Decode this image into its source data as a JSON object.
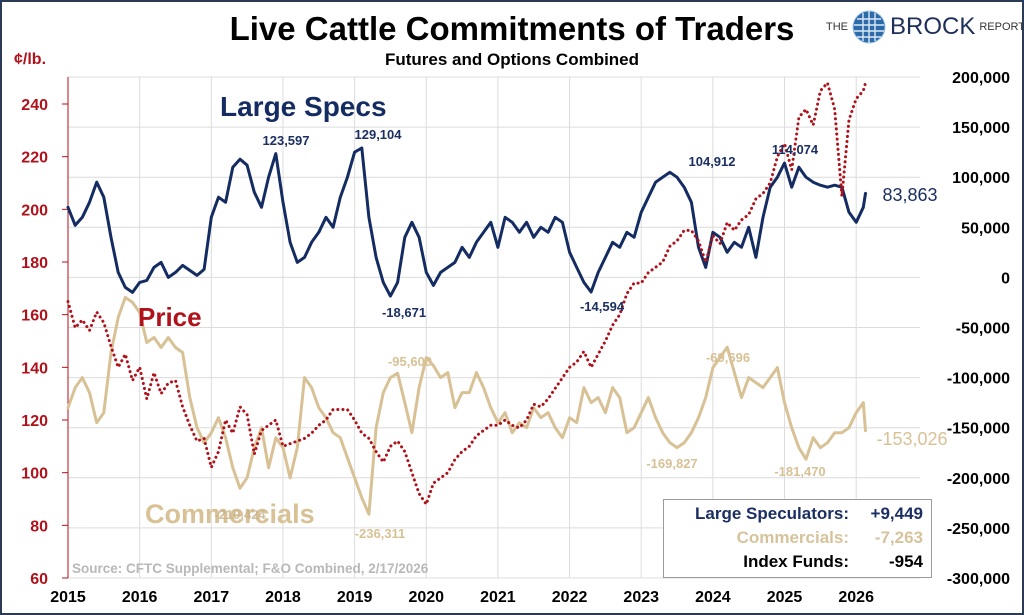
{
  "header": {
    "title": "Live Cattle Commitments of Traders",
    "subtitle": "Futures and Options Combined",
    "logo": {
      "the": "THE",
      "brand": "BROCK",
      "suffix": "REPORT"
    }
  },
  "source_note": "Source: CFTC Supplemental; F&O Combined, 2/17/2026",
  "summary": {
    "rows": [
      {
        "label": "Large Speculators:",
        "value": "+9,449",
        "color": "#1b2f63"
      },
      {
        "label": "Commercials:",
        "value": "-7,263",
        "color": "#d6c39b"
      },
      {
        "label": "Index Funds:",
        "value": "-954",
        "color": "#000000"
      }
    ]
  },
  "colors": {
    "large_specs": "#142c61",
    "commercials": "#d8c195",
    "price": "#b0121b",
    "grid": "#dcdcdc",
    "left_axis": "#b0121b"
  },
  "chart_data": {
    "type": "line",
    "title": "Live Cattle Commitments of Traders",
    "subtitle": "Futures and Options Combined",
    "xlabel": "",
    "x_ticks": [
      "2015",
      "2016",
      "2017",
      "2018",
      "2019",
      "2020",
      "2021",
      "2022",
      "2023",
      "2024",
      "2025",
      "2026"
    ],
    "xlim": [
      2015,
      2027.1
    ],
    "left_axis": {
      "label": "¢/lb.",
      "ylim": [
        60,
        240
      ],
      "ticks": [
        "60",
        "80",
        "100",
        "120",
        "140",
        "160",
        "180",
        "200",
        "220",
        "240"
      ]
    },
    "right_axis": {
      "label": "",
      "ylim": [
        -300000,
        200000
      ],
      "ticks": [
        "200,000",
        "150,000",
        "100,000",
        "50,000",
        "0",
        "-50,000",
        "-100,000",
        "-150,000",
        "-200,000",
        "-250,000",
        "-300,000"
      ]
    },
    "grid": true,
    "series_labels": {
      "large_specs": "Large Specs",
      "price": "Price",
      "commercials": "Commercials"
    },
    "series": [
      {
        "name": "Large Specs",
        "axis": "right",
        "style": "solid",
        "x": [
          2015.0,
          2015.1,
          2015.2,
          2015.3,
          2015.4,
          2015.5,
          2015.6,
          2015.7,
          2015.8,
          2015.9,
          2016.0,
          2016.1,
          2016.2,
          2016.3,
          2016.4,
          2016.5,
          2016.6,
          2016.7,
          2016.8,
          2016.9,
          2017.0,
          2017.1,
          2017.2,
          2017.3,
          2017.4,
          2017.5,
          2017.6,
          2017.7,
          2017.8,
          2017.9,
          2018.0,
          2018.1,
          2018.2,
          2018.3,
          2018.4,
          2018.5,
          2018.6,
          2018.7,
          2018.8,
          2018.9,
          2019.0,
          2019.1,
          2019.2,
          2019.3,
          2019.4,
          2019.5,
          2019.6,
          2019.7,
          2019.8,
          2019.9,
          2020.0,
          2020.1,
          2020.2,
          2020.3,
          2020.4,
          2020.5,
          2020.6,
          2020.7,
          2020.8,
          2020.9,
          2021.0,
          2021.1,
          2021.2,
          2021.3,
          2021.4,
          2021.5,
          2021.6,
          2021.7,
          2021.8,
          2021.9,
          2022.0,
          2022.1,
          2022.2,
          2022.3,
          2022.4,
          2022.5,
          2022.6,
          2022.7,
          2022.8,
          2022.9,
          2023.0,
          2023.1,
          2023.2,
          2023.3,
          2023.4,
          2023.5,
          2023.6,
          2023.7,
          2023.8,
          2023.9,
          2024.0,
          2024.1,
          2024.2,
          2024.3,
          2024.4,
          2024.5,
          2024.6,
          2024.7,
          2024.8,
          2024.9,
          2025.0,
          2025.1,
          2025.2,
          2025.3,
          2025.4,
          2025.5,
          2025.6,
          2025.7,
          2025.8,
          2025.9,
          2026.0,
          2026.1,
          2026.13
        ],
        "values": [
          70000,
          52000,
          60000,
          75000,
          95000,
          80000,
          40000,
          5000,
          -10000,
          -15000,
          -5000,
          -3000,
          10000,
          15000,
          0,
          5000,
          12000,
          7000,
          2000,
          8000,
          60000,
          80000,
          75000,
          110000,
          118000,
          112000,
          85000,
          70000,
          100000,
          123597,
          75000,
          35000,
          15000,
          20000,
          35000,
          45000,
          60000,
          50000,
          80000,
          100000,
          125000,
          129104,
          60000,
          20000,
          -5000,
          -18671,
          -5000,
          40000,
          55000,
          40000,
          5000,
          -8000,
          5000,
          10000,
          15000,
          30000,
          20000,
          35000,
          45000,
          55000,
          30000,
          60000,
          55000,
          45000,
          55000,
          40000,
          50000,
          45000,
          60000,
          55000,
          25000,
          10000,
          -5000,
          -14594,
          5000,
          20000,
          35000,
          30000,
          45000,
          40000,
          65000,
          80000,
          95000,
          100000,
          104912,
          100000,
          90000,
          75000,
          30000,
          10000,
          45000,
          40000,
          25000,
          35000,
          30000,
          50000,
          20000,
          60000,
          90000,
          100000,
          114074,
          90000,
          110000,
          100000,
          95000,
          92000,
          90000,
          92000,
          90000,
          65000,
          55000,
          70000,
          83863
        ]
      },
      {
        "name": "Commercials",
        "axis": "right",
        "style": "solid",
        "x": [
          2015.0,
          2015.1,
          2015.2,
          2015.3,
          2015.4,
          2015.5,
          2015.6,
          2015.7,
          2015.8,
          2015.9,
          2016.0,
          2016.1,
          2016.2,
          2016.3,
          2016.4,
          2016.5,
          2016.6,
          2016.7,
          2016.8,
          2016.9,
          2017.0,
          2017.1,
          2017.2,
          2017.3,
          2017.4,
          2017.5,
          2017.6,
          2017.7,
          2017.8,
          2017.9,
          2018.0,
          2018.1,
          2018.2,
          2018.3,
          2018.4,
          2018.5,
          2018.6,
          2018.7,
          2018.8,
          2018.9,
          2019.0,
          2019.1,
          2019.2,
          2019.3,
          2019.4,
          2019.5,
          2019.6,
          2019.7,
          2019.8,
          2019.9,
          2020.0,
          2020.1,
          2020.2,
          2020.3,
          2020.4,
          2020.5,
          2020.6,
          2020.7,
          2020.8,
          2020.9,
          2021.0,
          2021.1,
          2021.2,
          2021.3,
          2021.4,
          2021.5,
          2021.6,
          2021.7,
          2021.8,
          2021.9,
          2022.0,
          2022.1,
          2022.2,
          2022.3,
          2022.4,
          2022.5,
          2022.6,
          2022.7,
          2022.8,
          2022.9,
          2023.0,
          2023.1,
          2023.2,
          2023.3,
          2023.4,
          2023.5,
          2023.6,
          2023.7,
          2023.8,
          2023.9,
          2024.0,
          2024.1,
          2024.2,
          2024.3,
          2024.4,
          2024.5,
          2024.6,
          2024.7,
          2024.8,
          2024.9,
          2025.0,
          2025.1,
          2025.2,
          2025.3,
          2025.4,
          2025.5,
          2025.6,
          2025.7,
          2025.8,
          2025.9,
          2026.0,
          2026.1,
          2026.13
        ],
        "values": [
          -130000,
          -110000,
          -100000,
          -115000,
          -145000,
          -135000,
          -75000,
          -40000,
          -20000,
          -25000,
          -35000,
          -65000,
          -60000,
          -70000,
          -60000,
          -70000,
          -75000,
          -120000,
          -150000,
          -165000,
          -155000,
          -140000,
          -160000,
          -190000,
          -210424,
          -200000,
          -170000,
          -150000,
          -190000,
          -160000,
          -170000,
          -200000,
          -170000,
          -100000,
          -110000,
          -130000,
          -140000,
          -155000,
          -160000,
          -180000,
          -200000,
          -220000,
          -236311,
          -150000,
          -115000,
          -100000,
          -95600,
          -125000,
          -155000,
          -110000,
          -80000,
          -88000,
          -100000,
          -95000,
          -130000,
          -115000,
          -115000,
          -95000,
          -110000,
          -130000,
          -145000,
          -135000,
          -155000,
          -145000,
          -150000,
          -130000,
          -140000,
          -135000,
          -150000,
          -160000,
          -140000,
          -145000,
          -110000,
          -125000,
          -120000,
          -135000,
          -110000,
          -120000,
          -155000,
          -150000,
          -135000,
          -120000,
          -140000,
          -155000,
          -165000,
          -169827,
          -165000,
          -155000,
          -140000,
          -120000,
          -90000,
          -80000,
          -69696,
          -95000,
          -120000,
          -100000,
          -105000,
          -110000,
          -100000,
          -90000,
          -125000,
          -150000,
          -170000,
          -181470,
          -160000,
          -170000,
          -165000,
          -155000,
          -155000,
          -150000,
          -135000,
          -125000,
          -153026
        ]
      },
      {
        "name": "Price",
        "axis": "left",
        "style": "dotted",
        "x": [
          2015.0,
          2015.1,
          2015.2,
          2015.3,
          2015.4,
          2015.5,
          2015.6,
          2015.7,
          2015.8,
          2015.9,
          2016.0,
          2016.1,
          2016.2,
          2016.3,
          2016.4,
          2016.5,
          2016.6,
          2016.7,
          2016.8,
          2016.9,
          2017.0,
          2017.1,
          2017.2,
          2017.3,
          2017.4,
          2017.5,
          2017.6,
          2017.7,
          2017.8,
          2017.9,
          2018.0,
          2018.1,
          2018.2,
          2018.3,
          2018.4,
          2018.5,
          2018.6,
          2018.7,
          2018.8,
          2018.9,
          2019.0,
          2019.1,
          2019.2,
          2019.3,
          2019.4,
          2019.5,
          2019.6,
          2019.7,
          2019.8,
          2019.9,
          2020.0,
          2020.1,
          2020.2,
          2020.3,
          2020.4,
          2020.5,
          2020.6,
          2020.7,
          2020.8,
          2020.9,
          2021.0,
          2021.1,
          2021.2,
          2021.3,
          2021.4,
          2021.5,
          2021.6,
          2021.7,
          2021.8,
          2021.9,
          2022.0,
          2022.1,
          2022.2,
          2022.3,
          2022.4,
          2022.5,
          2022.6,
          2022.7,
          2022.8,
          2022.9,
          2023.0,
          2023.1,
          2023.2,
          2023.3,
          2023.4,
          2023.5,
          2023.6,
          2023.7,
          2023.8,
          2023.9,
          2024.0,
          2024.1,
          2024.2,
          2024.3,
          2024.4,
          2024.5,
          2024.6,
          2024.7,
          2024.8,
          2024.9,
          2025.0,
          2025.1,
          2025.2,
          2025.3,
          2025.4,
          2025.5,
          2025.6,
          2025.7,
          2025.8,
          2025.9,
          2026.0,
          2026.1,
          2026.13
        ],
        "values": [
          165,
          155,
          158,
          154,
          161,
          157,
          148,
          140,
          145,
          135,
          140,
          128,
          138,
          130,
          134,
          135,
          125,
          118,
          112,
          113,
          102,
          108,
          120,
          115,
          125,
          122,
          107,
          116,
          118,
          120,
          110,
          111,
          112,
          113,
          115,
          118,
          120,
          124,
          124,
          124,
          120,
          115,
          113,
          108,
          104,
          110,
          112,
          108,
          100,
          92,
          88,
          96,
          98,
          100,
          105,
          108,
          110,
          114,
          116,
          118,
          118,
          120,
          118,
          117,
          120,
          126,
          125,
          128,
          132,
          136,
          140,
          142,
          146,
          140,
          145,
          150,
          156,
          160,
          168,
          172,
          172,
          176,
          178,
          180,
          186,
          188,
          192,
          192,
          188,
          180,
          190,
          187,
          195,
          192,
          196,
          198,
          204,
          206,
          210,
          220,
          225,
          215,
          235,
          238,
          232,
          245,
          248,
          238,
          205,
          234,
          242,
          245,
          248
        ]
      }
    ],
    "annotations": [
      {
        "text": "123,597",
        "series": "Large Specs"
      },
      {
        "text": "129,104",
        "series": "Large Specs"
      },
      {
        "text": "-18,671",
        "series": "Large Specs"
      },
      {
        "text": "-14,594",
        "series": "Large Specs"
      },
      {
        "text": "104,912",
        "series": "Large Specs"
      },
      {
        "text": "114,074",
        "series": "Large Specs"
      },
      {
        "text": "83,863",
        "series": "Large Specs"
      },
      {
        "text": "-95,600",
        "series": "Commercials"
      },
      {
        "text": "-210,424",
        "series": "Commercials"
      },
      {
        "text": "-236,311",
        "series": "Commercials"
      },
      {
        "text": "-169,827",
        "series": "Commercials"
      },
      {
        "text": "-69,696",
        "series": "Commercials"
      },
      {
        "text": "-181,470",
        "series": "Commercials"
      },
      {
        "text": "-153,026",
        "series": "Commercials"
      }
    ]
  }
}
